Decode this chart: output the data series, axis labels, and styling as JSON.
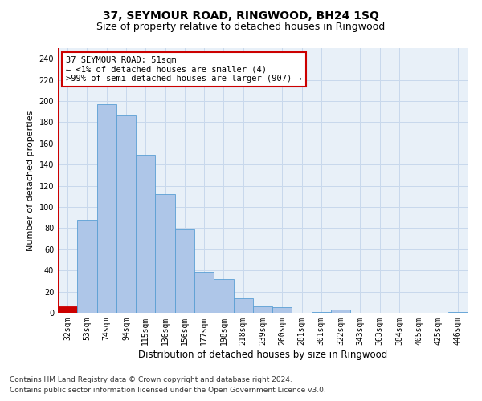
{
  "title": "37, SEYMOUR ROAD, RINGWOOD, BH24 1SQ",
  "subtitle": "Size of property relative to detached houses in Ringwood",
  "xlabel": "Distribution of detached houses by size in Ringwood",
  "ylabel": "Number of detached properties",
  "categories": [
    "32sqm",
    "53sqm",
    "74sqm",
    "94sqm",
    "115sqm",
    "136sqm",
    "156sqm",
    "177sqm",
    "198sqm",
    "218sqm",
    "239sqm",
    "260sqm",
    "281sqm",
    "301sqm",
    "322sqm",
    "343sqm",
    "363sqm",
    "384sqm",
    "405sqm",
    "425sqm",
    "446sqm"
  ],
  "values": [
    6,
    88,
    197,
    186,
    149,
    112,
    79,
    39,
    32,
    14,
    6,
    5,
    0,
    1,
    3,
    0,
    0,
    0,
    0,
    0,
    1
  ],
  "bar_color": "#aec6e8",
  "bar_edge_color": "#5a9fd4",
  "highlight_bar_index": 0,
  "highlight_color": "#cc0000",
  "highlight_line_color": "#cc0000",
  "annotation_box_text": "37 SEYMOUR ROAD: 51sqm\n← <1% of detached houses are smaller (4)\n>99% of semi-detached houses are larger (907) →",
  "annotation_box_color": "#cc0000",
  "ylim": [
    0,
    250
  ],
  "yticks": [
    0,
    20,
    40,
    60,
    80,
    100,
    120,
    140,
    160,
    180,
    200,
    220,
    240
  ],
  "grid_color": "#c8d8ec",
  "bg_color": "#e8f0f8",
  "footer_line1": "Contains HM Land Registry data © Crown copyright and database right 2024.",
  "footer_line2": "Contains public sector information licensed under the Open Government Licence v3.0.",
  "title_fontsize": 10,
  "subtitle_fontsize": 9,
  "ylabel_fontsize": 8,
  "xlabel_fontsize": 8.5,
  "tick_fontsize": 7,
  "annotation_fontsize": 7.5,
  "footer_fontsize": 6.5
}
